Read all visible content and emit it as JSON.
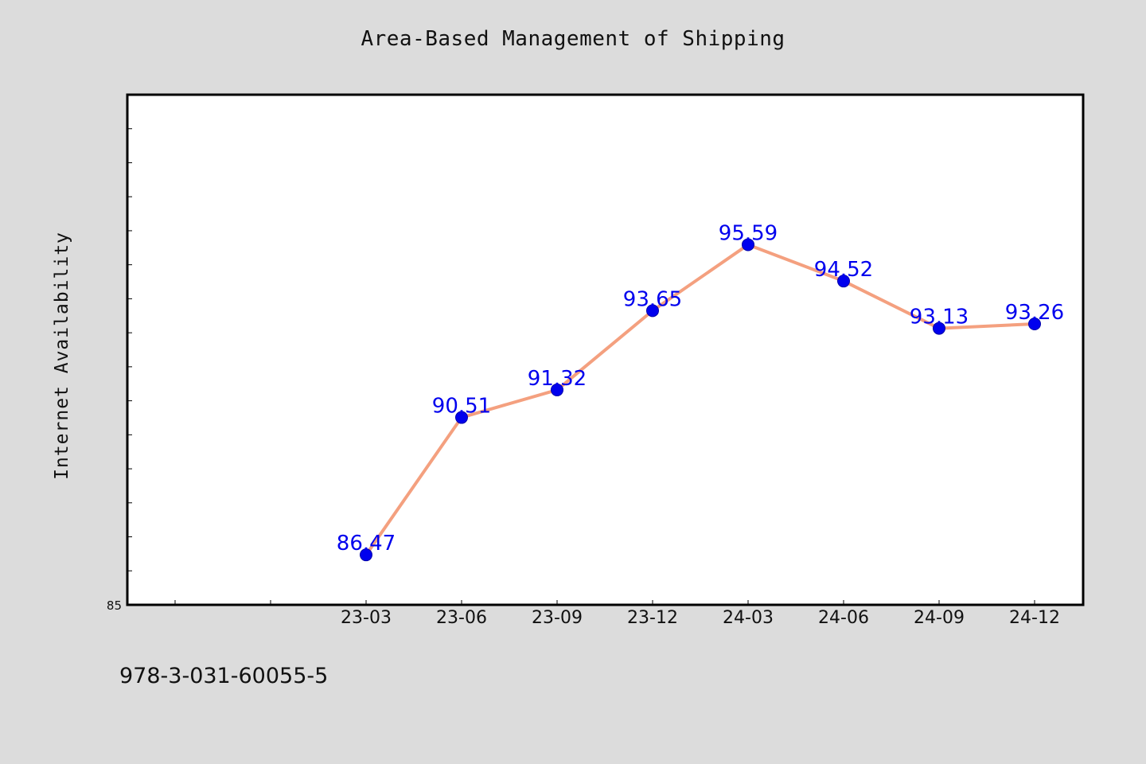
{
  "chart_data": {
    "type": "line",
    "title": "Area-Based Management of Shipping",
    "xlabel": "",
    "ylabel": "Internet Availability",
    "categories": [
      "23-03",
      "23-06",
      "23-09",
      "23-12",
      "24-03",
      "24-06",
      "24-09",
      "24-12"
    ],
    "series": [
      {
        "values": [
          86.47,
          90.51,
          91.32,
          93.65,
          95.59,
          94.52,
          93.13,
          93.26
        ],
        "data_labels": [
          "86.47",
          "90.51",
          "91.32",
          "93.65",
          "95.59",
          "94.52",
          "93.13",
          "93.26"
        ],
        "line_color": "#f4a07f",
        "marker_color": "#0000ee",
        "label_color": "#0000ee"
      }
    ],
    "ylim": [
      85,
      100
    ],
    "y_tick_labels": [
      "85"
    ],
    "grid": false,
    "legend": "none"
  },
  "footer": {
    "code": "978-3-031-60055-5"
  }
}
